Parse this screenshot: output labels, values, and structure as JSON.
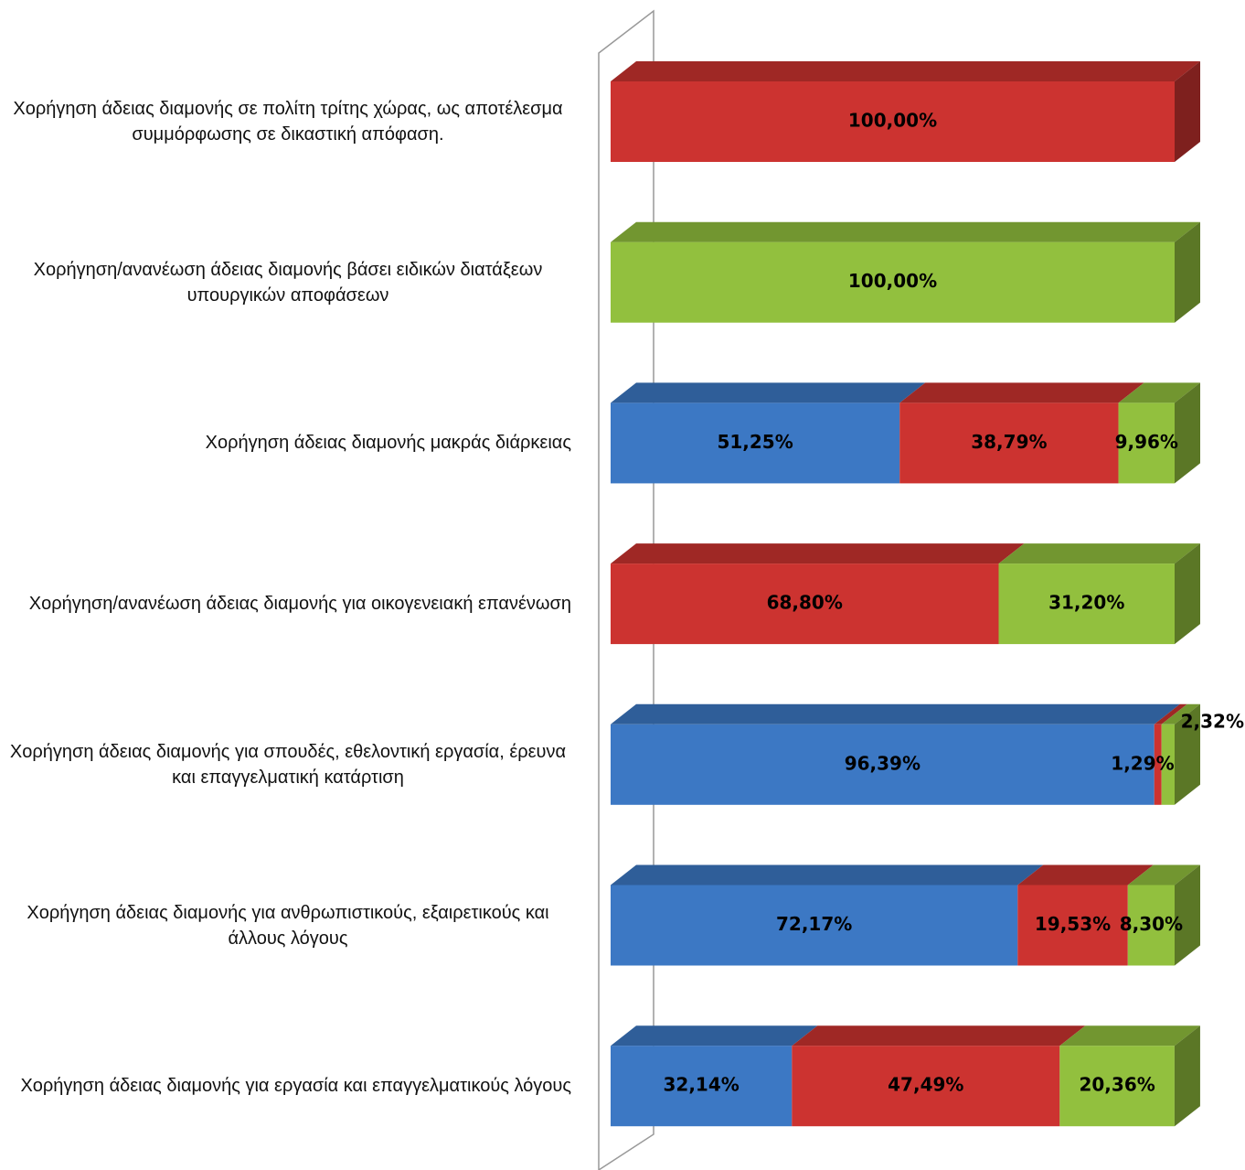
{
  "chart_data": {
    "type": "stacked-bar-3d",
    "orientation": "horizontal",
    "categories": [
      "Χορήγηση άδειας διαμονής σε πολίτη τρίτης χώρας, ως αποτέλεσμα συμμόρφωσης σε δικαστική απόφαση.",
      "Χορήγηση/ανανέωση άδειας διαμονής βάσει ειδικών διατάξεων υπουργικών αποφάσεων",
      "Χορήγηση άδειας διαμονής μακράς διάρκειας",
      "Χορήγηση/ανανέωση άδειας διαμονής για οικογενειακή επανένωση",
      "Χορήγηση άδειας διαμονής για σπουδές, εθελοντική εργασία, έρευνα και επαγγελματική κατάρτιση",
      "Χορήγηση άδειας διαμονής για ανθρωπιστικούς, εξαιρετικούς και άλλους λόγους",
      "Χορήγηση άδειας διαμονής για εργασία και επαγγελματικούς λόγους"
    ],
    "series": [
      {
        "color": "#3c78c4",
        "values": [
          null,
          null,
          51.25,
          null,
          96.39,
          72.17,
          32.14
        ],
        "value_labels": [
          null,
          null,
          "51,25%",
          null,
          "96,39%",
          "72,17%",
          "32,14%"
        ]
      },
      {
        "color": "#cc3330",
        "values": [
          100,
          null,
          38.79,
          68.8,
          1.29,
          19.53,
          47.49
        ],
        "value_labels": [
          "100,00%",
          null,
          "38,79%",
          "68,80%",
          "1,29%",
          "19,53%",
          "47,49%"
        ]
      },
      {
        "color": "#92c03e",
        "values": [
          null,
          100,
          9.96,
          31.2,
          2.32,
          8.3,
          20.36
        ],
        "value_labels": [
          null,
          "100,00%",
          "9,96%",
          "31,20%",
          "2,32%",
          "8,30%",
          "20,36%"
        ]
      }
    ],
    "xlim": [
      0,
      100
    ]
  }
}
